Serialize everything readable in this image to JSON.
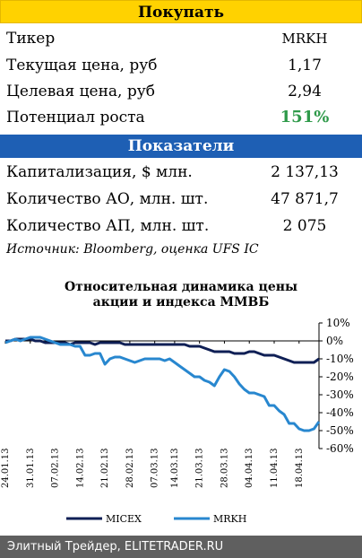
{
  "buy_header": "Покупать",
  "rows1": [
    {
      "label": "Тикер",
      "value": "MRKH"
    },
    {
      "label": "Текущая цена, руб",
      "value": "1,17"
    },
    {
      "label": "Целевая цена, руб",
      "value": "2,94"
    },
    {
      "label": "Потенциал роста",
      "value": "151%"
    }
  ],
  "ind_header": "Показатели",
  "rows2": [
    {
      "label": "Капитализация, $ млн.",
      "value": "2 137,13"
    },
    {
      "label": "Количество АО, млн. шт.",
      "value": "47 871,7"
    },
    {
      "label": "Количество АП, млн. шт.",
      "value": "2 075"
    }
  ],
  "source": "Источник: Bloomberg, оценка UFS IC",
  "chart_data": {
    "type": "line",
    "title_line1": "Относительная динамика цены",
    "title_line2": "акции и индекса ММВБ",
    "x": [
      "24.01.13",
      "25.01.13",
      "28.01.13",
      "29.01.13",
      "30.01.13",
      "31.01.13",
      "01.02.13",
      "04.02.13",
      "05.02.13",
      "06.02.13",
      "07.02.13",
      "08.02.13",
      "11.02.13",
      "12.02.13",
      "13.02.13",
      "14.02.13",
      "15.02.13",
      "18.02.13",
      "19.02.13",
      "20.02.13",
      "21.02.13",
      "22.02.13",
      "25.02.13",
      "26.02.13",
      "27.02.13",
      "28.02.13",
      "01.03.13",
      "04.03.13",
      "05.03.13",
      "06.03.13",
      "07.03.13",
      "11.03.13",
      "12.03.13",
      "13.03.13",
      "14.03.13",
      "15.03.13",
      "18.03.13",
      "19.03.13",
      "20.03.13",
      "21.03.13",
      "22.03.13",
      "25.03.13",
      "26.03.13",
      "27.03.13",
      "28.03.13",
      "29.03.13",
      "01.04.13",
      "02.04.13",
      "03.04.13",
      "04.04.13",
      "05.04.13",
      "08.04.13",
      "09.04.13",
      "10.04.13",
      "11.04.13",
      "12.04.13",
      "15.04.13",
      "16.04.13",
      "17.04.13",
      "18.04.13",
      "19.04.13",
      "22.04.13",
      "23.04.13",
      "24.04.13"
    ],
    "x_tick_labels": [
      "24.01.13",
      "31.01.13",
      "07.02.13",
      "14.02.13",
      "21.02.13",
      "28.02.13",
      "07.03.13",
      "14.03.13",
      "21.03.13",
      "28.03.13",
      "04.04.13",
      "11.04.13",
      "18.04.13"
    ],
    "y_ticks": [
      "10%",
      "0%",
      "-10%",
      "-20%",
      "-30%",
      "-40%",
      "-50%",
      "-60%"
    ],
    "ylim": [
      -60,
      10
    ],
    "series": [
      {
        "name": "MICEX",
        "color": "#0f1f55",
        "values": [
          0,
          0,
          1,
          1,
          1,
          1,
          0,
          0,
          -1,
          -1,
          -1,
          -1,
          -1,
          -2,
          -1,
          -1,
          -1,
          -1,
          -2,
          -1,
          -1,
          -1,
          -1,
          -1,
          -2,
          -2,
          -2,
          -2,
          -2,
          -2,
          -2,
          -2,
          -2,
          -2,
          -2,
          -2,
          -2,
          -3,
          -3,
          -3,
          -4,
          -5,
          -6,
          -6,
          -6,
          -6,
          -7,
          -7,
          -7,
          -6,
          -6,
          -7,
          -8,
          -8,
          -8,
          -9,
          -10,
          -11,
          -12,
          -12,
          -12,
          -12,
          -12,
          -10
        ]
      },
      {
        "name": "MRKH",
        "color": "#2887cf",
        "values": [
          -1,
          0,
          1,
          0,
          1,
          2,
          2,
          2,
          1,
          0,
          -1,
          -2,
          -2,
          -2,
          -3,
          -3,
          -8,
          -8,
          -7,
          -7,
          -13,
          -10,
          -9,
          -9,
          -10,
          -11,
          -12,
          -11,
          -10,
          -10,
          -10,
          -10,
          -11,
          -10,
          -12,
          -14,
          -16,
          -18,
          -20,
          -20,
          -22,
          -23,
          -25,
          -20,
          -16,
          -17,
          -20,
          -24,
          -27,
          -29,
          -29,
          -30,
          -31,
          -36,
          -36,
          -39,
          -41,
          -46,
          -46,
          -49,
          -50,
          -50,
          -49,
          -45
        ]
      }
    ]
  },
  "footer": "Элитный Трейдер, ELITETRADER.RU"
}
